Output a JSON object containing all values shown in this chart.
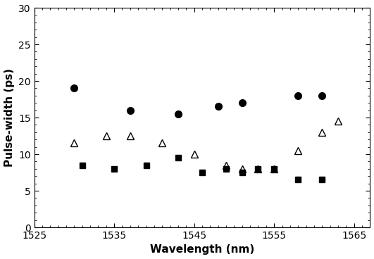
{
  "circles_x": [
    1530,
    1537,
    1543,
    1548,
    1551,
    1558,
    1561
  ],
  "circles_y": [
    19,
    16,
    15.5,
    16.5,
    17,
    18,
    18
  ],
  "triangles_x": [
    1530,
    1534,
    1537,
    1541,
    1545,
    1549,
    1551,
    1553,
    1555,
    1558,
    1561,
    1563
  ],
  "triangles_y": [
    11.5,
    12.5,
    12.5,
    11.5,
    10,
    8.5,
    8,
    8,
    8,
    10.5,
    13,
    14.5
  ],
  "squares_x": [
    1531,
    1535,
    1539,
    1543,
    1546,
    1549,
    1551,
    1553,
    1555,
    1558,
    1561
  ],
  "squares_y": [
    8.5,
    8,
    8.5,
    9.5,
    7.5,
    8,
    7.5,
    8,
    8,
    6.5,
    6.5
  ],
  "xlabel": "Wavelength (nm)",
  "ylabel": "Pulse-width (ps)",
  "xlim": [
    1525,
    1567
  ],
  "ylim": [
    0,
    30
  ],
  "xticks": [
    1525,
    1535,
    1545,
    1555,
    1565
  ],
  "yticks": [
    0,
    5,
    10,
    15,
    20,
    25,
    30
  ],
  "label_fontsize": 11,
  "tick_labelsize": 10,
  "marker_size_circle": 7,
  "marker_size_triangle": 7,
  "marker_size_square": 6
}
